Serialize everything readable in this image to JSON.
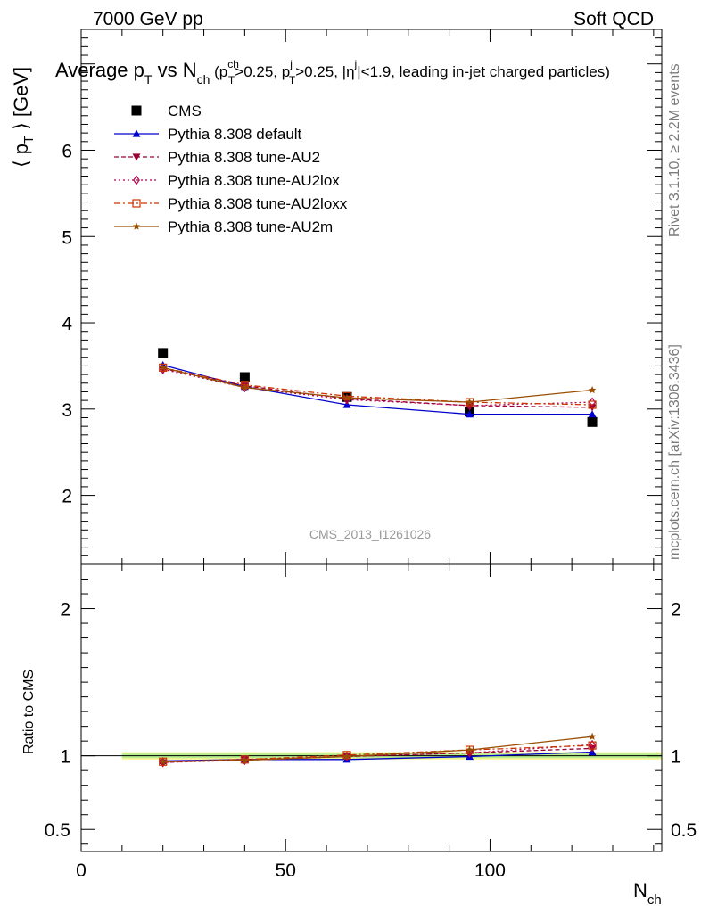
{
  "header": {
    "left": "7000 GeV pp",
    "right": "Soft QCD"
  },
  "side_labels": {
    "rivet": "Rivet 3.1.10, ≥ 2.2M events",
    "mcplots": "mcplots.cern.ch [arXiv:1306.3436]"
  },
  "watermark": "CMS_2013_I1261026",
  "chart_data": [
    {
      "type": "line",
      "title_parts": {
        "t1": "Average p",
        "t1sub": "T",
        "t2": " vs N",
        "t2sub": "ch",
        "t3": " (p",
        "t3sup": "ch",
        "t3sub": "T",
        "t4": ">0.25, p",
        "t4sup": "j",
        "t4sub": "T",
        "t5": ">0.25, |η",
        "t5sup": "j",
        "t6": "|<1.9, leading in-jet charged particles)"
      },
      "ylabel": "⟨ p_T ⟩ [GeV]",
      "xlabel": "N_ch",
      "xlim": [
        0,
        142
      ],
      "ylim": [
        1.2,
        7.4
      ],
      "yticks": [
        2,
        3,
        4,
        5,
        6
      ],
      "xticks": [
        0,
        50,
        100
      ],
      "legend_position": "top-left",
      "series": [
        {
          "name": "CMS",
          "color": "#000000",
          "marker": "square",
          "line": "none",
          "x": [
            20,
            40,
            65,
            95,
            125
          ],
          "y": [
            3.65,
            3.37,
            3.14,
            2.97,
            2.85
          ]
        },
        {
          "name": "Pythia 8.308 default",
          "color": "#0000cc",
          "marker": "triangle-up",
          "line": "solid",
          "x": [
            20,
            40,
            65,
            95,
            125
          ],
          "y": [
            3.51,
            3.26,
            3.05,
            2.94,
            2.94
          ]
        },
        {
          "name": "Pythia 8.308 tune-AU2",
          "color": "#990033",
          "marker": "triangle-down",
          "line": "dashed",
          "x": [
            20,
            40,
            65,
            95,
            125
          ],
          "y": [
            3.47,
            3.27,
            3.12,
            3.04,
            3.02
          ]
        },
        {
          "name": "Pythia 8.308 tune-AU2lox",
          "color": "#b3004d",
          "marker": "diamond-open",
          "line": "dotted",
          "x": [
            20,
            40,
            65,
            95,
            125
          ],
          "y": [
            3.46,
            3.25,
            3.11,
            3.04,
            3.08
          ]
        },
        {
          "name": "Pythia 8.308 tune-AU2loxx",
          "color": "#cc3300",
          "marker": "square-open",
          "line": "dashdot",
          "x": [
            20,
            40,
            65,
            95,
            125
          ],
          "y": [
            3.48,
            3.28,
            3.15,
            3.08,
            3.05
          ]
        },
        {
          "name": "Pythia 8.308 tune-AU2m",
          "color": "#994d00",
          "marker": "star",
          "line": "solid",
          "x": [
            20,
            40,
            65,
            95,
            125
          ],
          "y": [
            3.48,
            3.25,
            3.13,
            3.08,
            3.22
          ]
        }
      ]
    },
    {
      "type": "line",
      "ylabel": "Ratio to CMS",
      "xlabel": "N_ch",
      "xlim": [
        0,
        142
      ],
      "ylim": [
        0.35,
        2.3
      ],
      "ytick_labels": [
        "0.5",
        "1",
        "2"
      ],
      "yticks": [
        0.5,
        1,
        2
      ],
      "xticks": [
        0,
        50,
        100
      ],
      "band": {
        "x": [
          10,
          142
        ],
        "inner": [
          0.985,
          1.015
        ],
        "outer": [
          0.975,
          1.025
        ]
      },
      "series": [
        {
          "name": "Pythia 8.308 default",
          "color": "#0000cc",
          "marker": "triangle-up",
          "line": "solid",
          "x": [
            20,
            40,
            65,
            95,
            125
          ],
          "y": [
            0.965,
            0.975,
            0.975,
            0.995,
            1.025
          ]
        },
        {
          "name": "Pythia 8.308 tune-AU2",
          "color": "#990033",
          "marker": "triangle-down",
          "line": "dashed",
          "x": [
            20,
            40,
            65,
            95,
            125
          ],
          "y": [
            0.955,
            0.975,
            0.995,
            1.02,
            1.05
          ]
        },
        {
          "name": "Pythia 8.308 tune-AU2lox",
          "color": "#b3004d",
          "marker": "diamond-open",
          "line": "dotted",
          "x": [
            20,
            40,
            65,
            95,
            125
          ],
          "y": [
            0.955,
            0.97,
            0.995,
            1.02,
            1.075
          ]
        },
        {
          "name": "Pythia 8.308 tune-AU2loxx",
          "color": "#cc3300",
          "marker": "square-open",
          "line": "dashdot",
          "x": [
            20,
            40,
            65,
            95,
            125
          ],
          "y": [
            0.96,
            0.975,
            1.005,
            1.04,
            1.07
          ]
        },
        {
          "name": "Pythia 8.308 tune-AU2m",
          "color": "#994d00",
          "marker": "star",
          "line": "solid",
          "x": [
            20,
            40,
            65,
            95,
            125
          ],
          "y": [
            0.96,
            0.97,
            0.995,
            1.04,
            1.13
          ]
        }
      ]
    }
  ]
}
